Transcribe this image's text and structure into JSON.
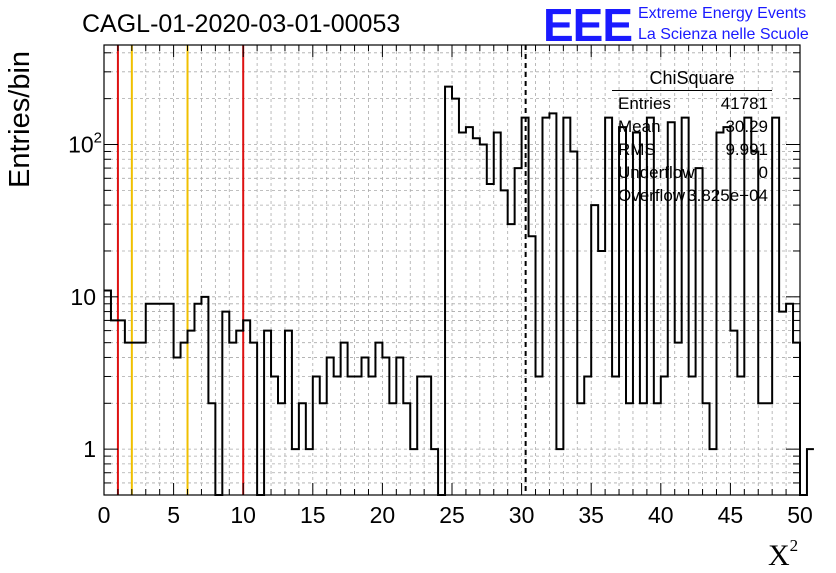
{
  "title": "CAGL-01-2020-03-01-00053",
  "logo": {
    "mark": "EEE",
    "line1": "Extreme Energy Events",
    "line2": "La Scienza nelle Scuole"
  },
  "stats_box": {
    "title": "ChiSquare",
    "rows": [
      {
        "label": "Entries",
        "value": "41781"
      },
      {
        "label": "Mean",
        "value": "30.29"
      },
      {
        "label": "RMS",
        "value": "9.991"
      },
      {
        "label": "Underflow",
        "value": "0"
      },
      {
        "label": "Overflow",
        "value": "3.825e+04"
      }
    ]
  },
  "colors": {
    "histogram": "#000000",
    "red_lines": "#dd1111",
    "yellow_lines": "#f0c000",
    "mean_line": "#000000",
    "grid": "#aaaaaa"
  },
  "chart_data": {
    "type": "histogram",
    "title": "CAGL-01-2020-03-01-00053",
    "xlabel": "X²",
    "ylabel": "Entries/bin",
    "xlim": [
      0,
      50
    ],
    "ylim": [
      0.5,
      450
    ],
    "yscale": "log",
    "grid": true,
    "bin_width": 0.5,
    "x_ticks": [
      0,
      5,
      10,
      15,
      20,
      25,
      30,
      35,
      40,
      45,
      50
    ],
    "y_ticks": [
      {
        "value": 1,
        "label": "1"
      },
      {
        "value": 10,
        "label": "10"
      },
      {
        "value": 100,
        "label": "10²"
      }
    ],
    "counts": [
      11,
      7,
      7,
      5,
      5,
      5,
      9,
      9,
      9,
      9,
      4,
      5,
      6,
      9,
      10,
      2,
      0,
      8,
      5,
      6,
      7,
      5,
      0,
      6,
      3,
      2,
      6,
      1,
      2,
      1,
      3,
      2,
      4,
      3,
      5,
      3,
      3,
      4,
      3,
      5,
      4,
      2,
      4,
      2,
      1,
      3,
      3,
      1,
      0,
      240,
      200,
      120,
      130,
      110,
      100,
      55,
      120,
      50,
      30,
      70,
      150,
      25,
      3,
      150,
      160,
      1,
      150,
      90,
      2,
      3,
      40,
      20,
      150,
      3,
      130,
      2,
      120,
      2,
      150,
      2,
      3,
      140,
      5,
      150,
      3,
      70,
      2,
      1,
      120,
      130,
      6,
      3,
      150,
      90,
      2,
      2,
      150,
      8,
      9,
      5,
      0,
      1
    ],
    "vertical_lines": [
      {
        "x": 1,
        "style": "red"
      },
      {
        "x": 10,
        "style": "red"
      },
      {
        "x": 2,
        "style": "yellow"
      },
      {
        "x": 6,
        "style": "yellow"
      },
      {
        "x": 30.29,
        "style": "dashed-mean"
      }
    ]
  }
}
